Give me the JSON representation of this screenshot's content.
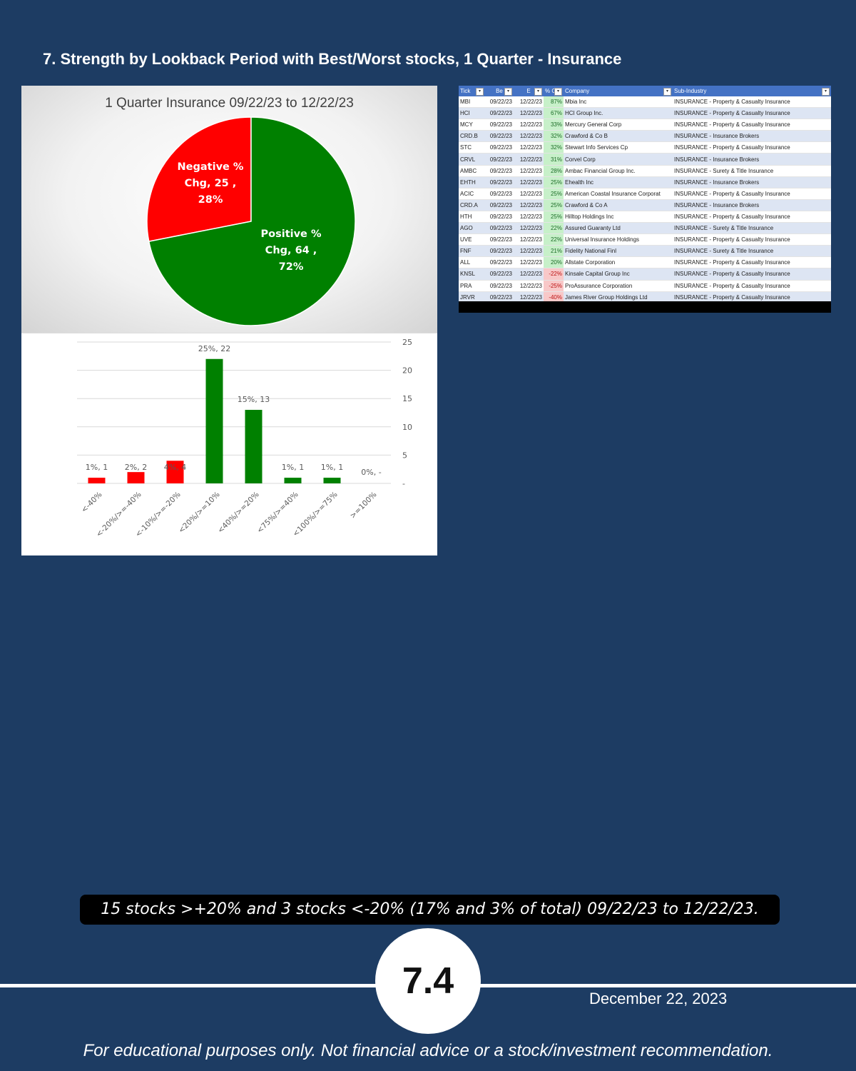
{
  "header": {
    "title": "7. Strength by Lookback Period with Best/Worst stocks, 1 Quarter - Insurance"
  },
  "chart_data": [
    {
      "type": "pie",
      "title": "1 Quarter Insurance 09/22/23 to 12/22/23",
      "slices": [
        {
          "name": "Negative % Chg",
          "value": 25,
          "percent": 28,
          "color": "#ff0000",
          "label_lines": [
            "Negative %",
            "Chg,  25 ,",
            "28%"
          ]
        },
        {
          "name": "Positive % Chg",
          "value": 64,
          "percent": 72,
          "color": "#008000",
          "label_lines": [
            "Positive %",
            "Chg,  64 ,",
            "72%"
          ]
        }
      ]
    },
    {
      "type": "bar",
      "categories": [
        "<-40%",
        "<-20%/>=-40%",
        "<-10%/>=-20%",
        "<20%/>=10%",
        "<40%/>=20%",
        "<75%/>=40%",
        "<100%/>=75%",
        ">=100%"
      ],
      "values": [
        1,
        2,
        4,
        22,
        13,
        1,
        1,
        0
      ],
      "data_labels": [
        "1%, 1",
        "2%, 2",
        "4%, 4",
        "25%, 22",
        "15%, 13",
        "1%, 1",
        "1%, 1",
        "0%, -"
      ],
      "colors": [
        "#ff0000",
        "#ff0000",
        "#ff0000",
        "#008000",
        "#008000",
        "#008000",
        "#008000",
        "#008000"
      ],
      "yticks": [
        "-",
        "5",
        "10",
        "15",
        "20",
        "25"
      ],
      "ylim": [
        0,
        25
      ],
      "grid": true
    }
  ],
  "table": {
    "headers": [
      "Tick",
      "Be",
      "E",
      "% C",
      "Company",
      "Sub-Industry"
    ],
    "rows": [
      {
        "ticker": "MBI",
        "begin": "09/22/23",
        "end": "12/22/23",
        "pct": "87%",
        "company": "Mbia Inc",
        "sub": "INSURANCE - Property & Casualty Insurance"
      },
      {
        "ticker": "HCI",
        "begin": "09/22/23",
        "end": "12/22/23",
        "pct": "67%",
        "company": "HCI Group Inc.",
        "sub": "INSURANCE - Property & Casualty Insurance"
      },
      {
        "ticker": "MCY",
        "begin": "09/22/23",
        "end": "12/22/23",
        "pct": "33%",
        "company": "Mercury General Corp",
        "sub": "INSURANCE - Property & Casualty Insurance"
      },
      {
        "ticker": "CRD.B",
        "begin": "09/22/23",
        "end": "12/22/23",
        "pct": "32%",
        "company": "Crawford & Co B",
        "sub": "INSURANCE - Insurance Brokers"
      },
      {
        "ticker": "STC",
        "begin": "09/22/23",
        "end": "12/22/23",
        "pct": "32%",
        "company": "Stewart Info Services Cp",
        "sub": "INSURANCE - Property & Casualty Insurance"
      },
      {
        "ticker": "CRVL",
        "begin": "09/22/23",
        "end": "12/22/23",
        "pct": "31%",
        "company": "Corvel Corp",
        "sub": "INSURANCE - Insurance Brokers"
      },
      {
        "ticker": "AMBC",
        "begin": "09/22/23",
        "end": "12/22/23",
        "pct": "28%",
        "company": "Ambac Financial Group Inc.",
        "sub": "INSURANCE - Surety & Title Insurance"
      },
      {
        "ticker": "EHTH",
        "begin": "09/22/23",
        "end": "12/22/23",
        "pct": "25%",
        "company": "Ehealth Inc",
        "sub": "INSURANCE - Insurance Brokers"
      },
      {
        "ticker": "ACIC",
        "begin": "09/22/23",
        "end": "12/22/23",
        "pct": "25%",
        "company": "American Coastal Insurance Corporat",
        "sub": "INSURANCE - Property & Casualty Insurance"
      },
      {
        "ticker": "CRD.A",
        "begin": "09/22/23",
        "end": "12/22/23",
        "pct": "25%",
        "company": "Crawford & Co A",
        "sub": "INSURANCE - Insurance Brokers"
      },
      {
        "ticker": "HTH",
        "begin": "09/22/23",
        "end": "12/22/23",
        "pct": "25%",
        "company": "Hilltop Holdings Inc",
        "sub": "INSURANCE - Property & Casualty Insurance"
      },
      {
        "ticker": "AGO",
        "begin": "09/22/23",
        "end": "12/22/23",
        "pct": "22%",
        "company": "Assured Guaranty Ltd",
        "sub": "INSURANCE - Surety & Title Insurance"
      },
      {
        "ticker": "UVE",
        "begin": "09/22/23",
        "end": "12/22/23",
        "pct": "22%",
        "company": "Universal Insurance Holdings",
        "sub": "INSURANCE - Property & Casualty Insurance"
      },
      {
        "ticker": "FNF",
        "begin": "09/22/23",
        "end": "12/22/23",
        "pct": "21%",
        "company": "Fidelity National Finl",
        "sub": "INSURANCE - Surety & Title Insurance"
      },
      {
        "ticker": "ALL",
        "begin": "09/22/23",
        "end": "12/22/23",
        "pct": "20%",
        "company": "Allstate Corporation",
        "sub": "INSURANCE - Property & Casualty Insurance"
      },
      {
        "ticker": "KNSL",
        "begin": "09/22/23",
        "end": "12/22/23",
        "pct": "-22%",
        "company": "Kinsale Capital Group Inc",
        "sub": "INSURANCE - Property & Casualty Insurance"
      },
      {
        "ticker": "PRA",
        "begin": "09/22/23",
        "end": "12/22/23",
        "pct": "-25%",
        "company": "ProAssurance Corporation",
        "sub": "INSURANCE - Property & Casualty Insurance"
      },
      {
        "ticker": "JRVR",
        "begin": "09/22/23",
        "end": "12/22/23",
        "pct": "-40%",
        "company": "James River Group Holdings Ltd",
        "sub": "INSURANCE - Property & Casualty Insurance"
      }
    ]
  },
  "summary": "15 stocks >+20% and 3 stocks <-20% (17% and 3% of total) 09/22/23 to 12/22/23.",
  "badge": "7.4",
  "date": "December 22, 2023",
  "disclaimer": "For educational purposes only. Not financial advice or a stock/investment recommendation.",
  "colors": {
    "background": "#1d3c63",
    "positive": "#008000",
    "negative": "#ff0000",
    "table_header": "#4472c4"
  }
}
